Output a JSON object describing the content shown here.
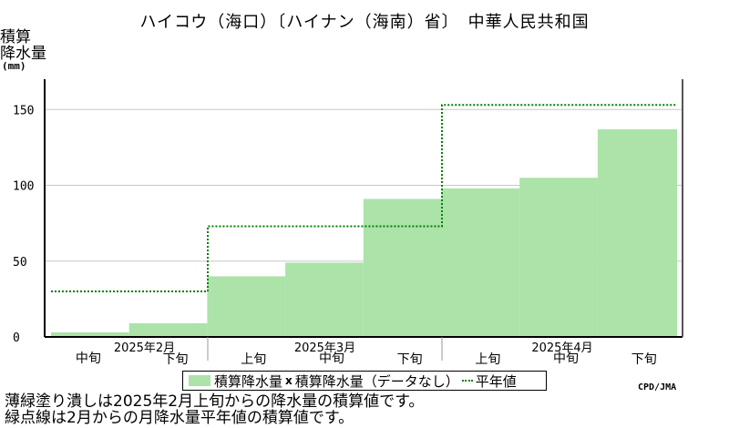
{
  "title": "ハイコウ（海口）〔ハイナン（海南）省〕　中華人民共和国",
  "ylabel_lines": [
    "積算",
    "降水量"
  ],
  "yunit": "(mm)",
  "credit": "CPD/JMA",
  "legend": {
    "observed": "積算降水量",
    "missing_marker": "x",
    "missing": "積算降水量（データなし）",
    "normal": "平年値"
  },
  "notes": [
    "薄緑塗り潰しは2025年2月上旬からの降水量の積算値です。",
    "緑点線は2月からの月降水量平年値の積算値です。"
  ],
  "colors": {
    "fill": "#abe3a9",
    "normal_line": "#008000",
    "grid": "#c8c8c8"
  },
  "chart_data": {
    "type": "bar",
    "categories": [
      "中旬",
      "下旬",
      "上旬",
      "中旬",
      "下旬",
      "上旬",
      "中旬",
      "下旬"
    ],
    "month_labels": [
      "2025年2月",
      "2025年3月",
      "2025年4月"
    ],
    "values": [
      3,
      9,
      40,
      49,
      91,
      98,
      105,
      137
    ],
    "normal_steps": [
      {
        "months": "2025年2月",
        "value": 30
      },
      {
        "months": "2025年3月",
        "value": 73
      },
      {
        "months": "2025年4月",
        "value": 153
      }
    ],
    "ylim": [
      0,
      170
    ],
    "yticks": [
      0,
      50,
      100,
      150
    ],
    "grid": true,
    "legend_position": "bottom"
  }
}
